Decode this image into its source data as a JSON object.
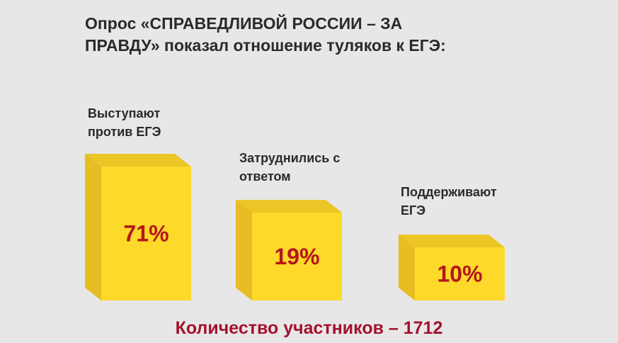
{
  "chart_data": {
    "type": "bar",
    "title": "Опрос «СПРАВЕДЛИВОЙ РОССИИ – ЗА ПРАВДУ» показал отношение туляков к ЕГЭ:",
    "categories": [
      "Выступают против ЕГЭ",
      "Затруднились с ответом",
      "Поддерживают ЕГЭ"
    ],
    "values": [
      71,
      19,
      10
    ],
    "data_labels": [
      "71%",
      "19%",
      "10%"
    ],
    "footer": "Количество участников – 1712",
    "grid": false,
    "colors": {
      "front": "#fdd92a",
      "side": "#e6bd22",
      "top": "#ecc526",
      "label": "#b4161b",
      "footer": "#a3122f",
      "background": "#e7e7e7"
    }
  }
}
